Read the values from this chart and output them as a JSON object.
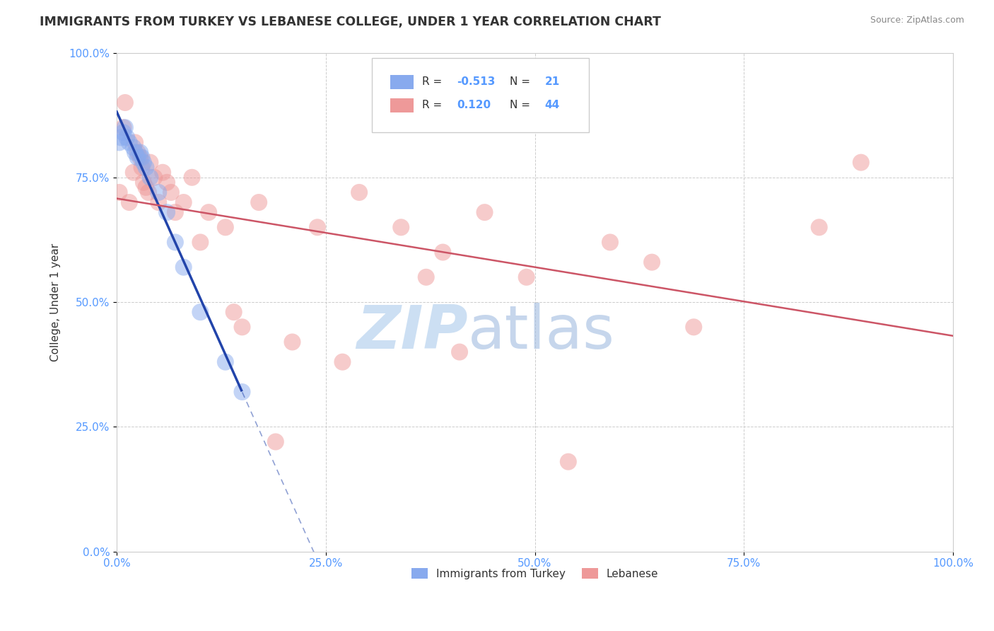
{
  "title": "IMMIGRANTS FROM TURKEY VS LEBANESE COLLEGE, UNDER 1 YEAR CORRELATION CHART",
  "source": "Source: ZipAtlas.com",
  "ylabel": "College, Under 1 year",
  "legend_blue_label": "Immigrants from Turkey",
  "legend_pink_label": "Lebanese",
  "R_blue": -0.513,
  "N_blue": 21,
  "R_pink": 0.12,
  "N_pink": 44,
  "blue_color": "#88aaee",
  "pink_color": "#ee9999",
  "blue_line_color": "#2244aa",
  "pink_line_color": "#cc5566",
  "blue_scatter_x": [
    0.3,
    0.5,
    0.8,
    1.0,
    1.2,
    1.5,
    2.0,
    2.2,
    2.5,
    2.8,
    3.0,
    3.2,
    3.5,
    4.0,
    5.0,
    6.0,
    7.0,
    8.0,
    10.0,
    13.0,
    15.0
  ],
  "blue_scatter_y": [
    82,
    83,
    84,
    85,
    83,
    82,
    81,
    80,
    79,
    80,
    79,
    78,
    77,
    75,
    72,
    68,
    62,
    57,
    48,
    38,
    32
  ],
  "pink_scatter_x": [
    0.3,
    0.8,
    1.0,
    1.5,
    2.0,
    2.2,
    2.5,
    2.8,
    3.0,
    3.2,
    3.5,
    3.8,
    4.0,
    4.5,
    5.0,
    5.5,
    6.0,
    6.5,
    7.0,
    8.0,
    9.0,
    10.0,
    11.0,
    13.0,
    14.0,
    15.0,
    17.0,
    19.0,
    21.0,
    24.0,
    27.0,
    29.0,
    34.0,
    37.0,
    39.0,
    41.0,
    44.0,
    49.0,
    54.0,
    59.0,
    64.0,
    69.0,
    84.0,
    89.0
  ],
  "pink_scatter_y": [
    72,
    85,
    90,
    70,
    76,
    82,
    80,
    79,
    77,
    74,
    73,
    72,
    78,
    75,
    70,
    76,
    74,
    72,
    68,
    70,
    75,
    62,
    68,
    65,
    48,
    45,
    70,
    22,
    42,
    65,
    38,
    72,
    65,
    55,
    60,
    40,
    68,
    55,
    18,
    62,
    58,
    45,
    65,
    78
  ],
  "xlim": [
    0,
    100
  ],
  "ylim": [
    0,
    100
  ],
  "xticks": [
    0,
    25,
    50,
    75,
    100
  ],
  "yticks": [
    0,
    25,
    50,
    75,
    100
  ],
  "xtick_labels": [
    "0.0%",
    "25.0%",
    "50.0%",
    "75.0%",
    "100.0%"
  ],
  "ytick_labels": [
    "0.0%",
    "25.0%",
    "50.0%",
    "75.0%",
    "100.0%"
  ],
  "tick_color": "#5599ff",
  "background_color": "#ffffff",
  "grid_color": "#cccccc",
  "title_color": "#333333",
  "source_color": "#888888",
  "blue_solid_end_x": 15.0,
  "watermark_zip_color": "#c0d8f0",
  "watermark_atlas_color": "#a0bce0"
}
